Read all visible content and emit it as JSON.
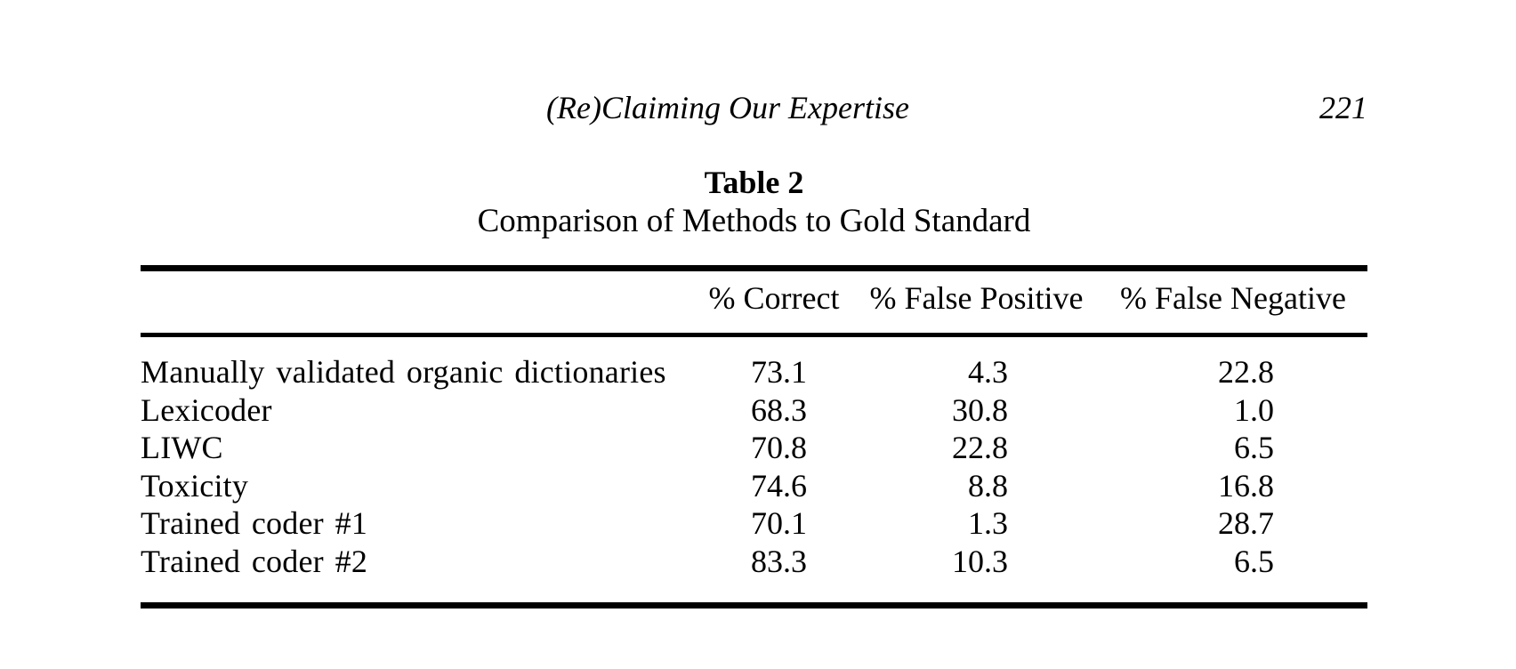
{
  "page": {
    "running_head": "(Re)Claiming Our Expertise",
    "page_number": "221"
  },
  "table": {
    "label": "Table 2",
    "caption": "Comparison of Methods to Gold Standard",
    "columns": [
      "% Correct",
      "% False Positive",
      "% False Negative"
    ],
    "rows": [
      {
        "label": "Manually validated organic dictionaries",
        "values": [
          "73.1",
          "4.3",
          "22.8"
        ]
      },
      {
        "label": "Lexicoder",
        "values": [
          "68.3",
          "30.8",
          "1.0"
        ]
      },
      {
        "label": "LIWC",
        "values": [
          "70.8",
          "22.8",
          "6.5"
        ]
      },
      {
        "label": "Toxicity",
        "values": [
          "74.6",
          "8.8",
          "16.8"
        ]
      },
      {
        "label": "Trained coder #1",
        "values": [
          "70.1",
          "1.3",
          "28.7"
        ]
      },
      {
        "label": "Trained coder #2",
        "values": [
          "83.3",
          "10.3",
          "6.5"
        ]
      }
    ]
  }
}
